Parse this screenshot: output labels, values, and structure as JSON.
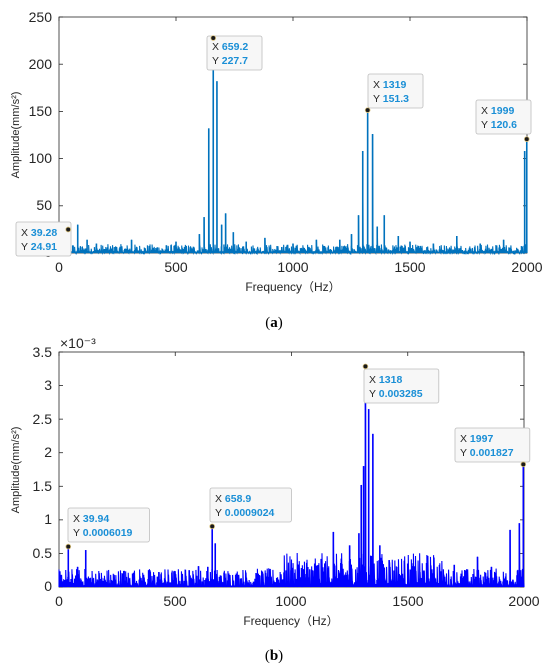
{
  "panels": [
    {
      "label": "(a)",
      "label_letter": "a",
      "chart_data": {
        "type": "line",
        "title": "",
        "xlabel": "Frequency（Hz）",
        "ylabel": "Amplitude(mm/s²)",
        "exponent_label": "",
        "xlim": [
          0,
          2000
        ],
        "ylim": [
          0,
          250
        ],
        "xticks": [
          0,
          500,
          1000,
          1500,
          2000
        ],
        "yticks": [
          0,
          50,
          100,
          150,
          200,
          250
        ],
        "ytick_labels": [
          "0",
          "50",
          "100",
          "150",
          "200",
          "250"
        ],
        "grid": false,
        "color": "#0072BD",
        "noise_level": 4,
        "series": [
          {
            "values": [
              [
                39.28,
                24.91
              ],
              [
                60,
                8
              ],
              [
                80,
                30
              ],
              [
                120,
                14
              ],
              [
                160,
                10
              ],
              [
                230,
                6
              ],
              [
                310,
                14
              ],
              [
                420,
                6
              ],
              [
                500,
                12
              ],
              [
                600,
                20
              ],
              [
                620,
                38
              ],
              [
                640,
                132
              ],
              [
                659.2,
                227.7
              ],
              [
                675,
                182
              ],
              [
                695,
                30
              ],
              [
                712,
                42
              ],
              [
                745,
                22
              ],
              [
                800,
                12
              ],
              [
                880,
                16
              ],
              [
                1000,
                10
              ],
              [
                1100,
                14
              ],
              [
                1200,
                14
              ],
              [
                1250,
                20
              ],
              [
                1280,
                40
              ],
              [
                1298,
                108
              ],
              [
                1319,
                151.3
              ],
              [
                1340,
                126
              ],
              [
                1360,
                28
              ],
              [
                1390,
                40
              ],
              [
                1450,
                18
              ],
              [
                1500,
                12
              ],
              [
                1600,
                10
              ],
              [
                1700,
                18
              ],
              [
                1800,
                10
              ],
              [
                1900,
                14
              ],
              [
                1990,
                108
              ],
              [
                1999,
                120.6
              ]
            ]
          }
        ],
        "annotations": [
          {
            "x_label": "X",
            "x_value": "39.28",
            "y_label": "Y",
            "y_value": "24.91",
            "x": 39.28,
            "y": 24.91
          },
          {
            "x_label": "X",
            "x_value": "659.2",
            "y_label": "Y",
            "y_value": "227.7",
            "x": 659.2,
            "y": 227.7
          },
          {
            "x_label": "X",
            "x_value": "1319",
            "y_label": "Y",
            "y_value": "151.3",
            "x": 1319,
            "y": 151.3
          },
          {
            "x_label": "X",
            "x_value": "1999",
            "y_label": "Y",
            "y_value": "120.6",
            "x": 1999,
            "y": 120.6
          }
        ]
      }
    },
    {
      "label": "(b)",
      "label_letter": "b",
      "chart_data": {
        "type": "line",
        "title": "",
        "xlabel": "Frequency（Hz）",
        "ylabel": "Amplitude(mm/s²)",
        "exponent_label": "×10⁻³",
        "xlim": [
          0,
          2000
        ],
        "ylim": [
          0,
          0.0035
        ],
        "xticks": [
          0,
          500,
          1000,
          1500,
          2000
        ],
        "yticks": [
          0,
          0.0005,
          0.001,
          0.0015,
          0.002,
          0.0025,
          0.003,
          0.0035
        ],
        "ytick_labels": [
          "0",
          "0.5",
          "1",
          "1.5",
          "2",
          "2.5",
          "3",
          "3.5"
        ],
        "grid": false,
        "color": "#0000FF",
        "noise_level": 0.00012,
        "series": [
          {
            "values": [
              [
                39.94,
                0.0006019
              ],
              [
                80,
                0.0003
              ],
              [
                115,
                0.00055
              ],
              [
                180,
                0.00012
              ],
              [
                280,
                0.00024
              ],
              [
                430,
                0.00022
              ],
              [
                560,
                0.00025
              ],
              [
                600,
                0.00031
              ],
              [
                640,
                0.0003
              ],
              [
                658.9,
                0.0009024
              ],
              [
                672,
                0.00065
              ],
              [
                760,
                0.00018
              ],
              [
                900,
                0.00015
              ],
              [
                1000,
                0.00025
              ],
              [
                1100,
                0.00035
              ],
              [
                1180,
                0.00082
              ],
              [
                1250,
                0.00062
              ],
              [
                1290,
                0.0008
              ],
              [
                1300,
                0.00152
              ],
              [
                1310,
                0.0018
              ],
              [
                1318,
                0.003285
              ],
              [
                1332,
                0.00265
              ],
              [
                1350,
                0.00228
              ],
              [
                1380,
                0.00062
              ],
              [
                1420,
                0.0004
              ],
              [
                1500,
                0.00035
              ],
              [
                1700,
                0.00033
              ],
              [
                1800,
                0.00045
              ],
              [
                1860,
                0.0003
              ],
              [
                1940,
                0.00085
              ],
              [
                1980,
                0.00095
              ],
              [
                1997,
                0.001827
              ]
            ]
          }
        ],
        "annotations": [
          {
            "x_label": "X",
            "x_value": "39.94",
            "y_label": "Y",
            "y_value": "0.0006019",
            "x": 39.94,
            "y": 0.0006019
          },
          {
            "x_label": "X",
            "x_value": "658.9",
            "y_label": "Y",
            "y_value": "0.0009024",
            "x": 658.9,
            "y": 0.0009024
          },
          {
            "x_label": "X",
            "x_value": "1318",
            "y_label": "Y",
            "y_value": "0.003285",
            "x": 1318,
            "y": 0.003285
          },
          {
            "x_label": "X",
            "x_value": "1997",
            "y_label": "Y",
            "y_value": "0.001827",
            "x": 1997,
            "y": 0.001827
          }
        ]
      }
    }
  ]
}
